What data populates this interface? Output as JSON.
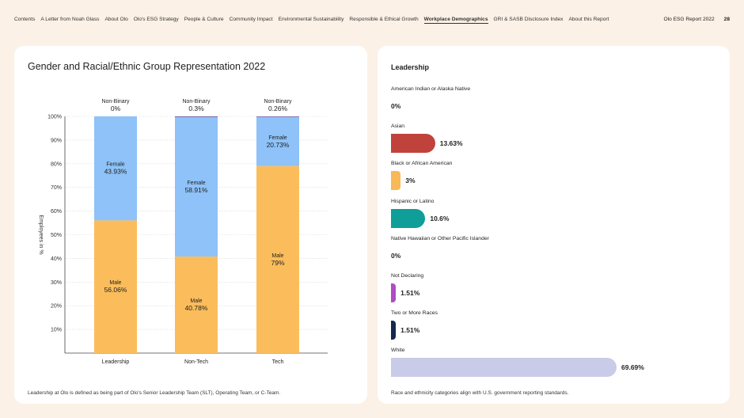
{
  "nav": {
    "items": [
      "Contents",
      "A Letter from Noah Glass",
      "About Olo",
      "Olo's ESG Strategy",
      "People & Culture",
      "Community Impact",
      "Environmental Sustainability",
      "Responsible & Ethical Growth",
      "Workplace Demographics",
      "GRI & SASB Disclosure Index",
      "About this Report"
    ],
    "active_index": 8,
    "report_title": "Olo ESG Report 2022",
    "page_number": "28"
  },
  "left_card": {
    "footnote": "Leadership at Olo is defined as being part of Olo's Senior Leadership Team (SLT), Operating Team, or C-Team."
  },
  "right_card": {
    "title": "Leadership",
    "footnote": "Race and ethnicity categories align with U.S. government reporting standards.",
    "items": [
      {
        "label": "American Indian or Alaska Native",
        "value": 0,
        "value_text": "0%",
        "color": "#c0433b"
      },
      {
        "label": "Asian",
        "value": 13.63,
        "value_text": "13.63%",
        "color": "#c0433b"
      },
      {
        "label": "Black or African American",
        "value": 3,
        "value_text": "3%",
        "color": "#f8b956"
      },
      {
        "label": "Hispanic or Latino",
        "value": 10.6,
        "value_text": "10.6%",
        "color": "#0f9e98"
      },
      {
        "label": "Native Hawaiian or Other Pacific Islander",
        "value": 0,
        "value_text": "0%",
        "color": "#999999"
      },
      {
        "label": "Not Declaring",
        "value": 1.51,
        "value_text": "1.51%",
        "color": "#b04cc4"
      },
      {
        "label": "Two or More Races",
        "value": 1.51,
        "value_text": "1.51%",
        "color": "#16284f"
      },
      {
        "label": "White",
        "value": 69.69,
        "value_text": "69.69%",
        "color": "#c9cbe8"
      }
    ]
  },
  "chart_data": {
    "type": "bar",
    "stacked": true,
    "title": "Gender and Racial/Ethnic Group Representation 2022",
    "ylabel": "Employees in %",
    "xlabel": "",
    "ylim": [
      0,
      100
    ],
    "yticks": [
      "10%",
      "20%",
      "30%",
      "40%",
      "50%",
      "60%",
      "70%",
      "80%",
      "90%",
      "100%"
    ],
    "grid": true,
    "categories": [
      "Leadership",
      "Non-Tech",
      "Tech"
    ],
    "series": [
      {
        "name": "Male",
        "values": [
          56.06,
          40.78,
          79
        ],
        "labels": [
          "56.06%",
          "40.78%",
          "79%"
        ],
        "color": "#fbbd5b"
      },
      {
        "name": "Female",
        "values": [
          43.93,
          58.91,
          20.73
        ],
        "labels": [
          "43.93%",
          "58.91%",
          "20.73%"
        ],
        "color": "#8ec2f8"
      },
      {
        "name": "Non-Binary",
        "values": [
          0,
          0.3,
          0.26
        ],
        "labels": [
          "0%",
          "0.3%",
          "0.26%"
        ],
        "color": "#6b5aa6"
      }
    ]
  }
}
